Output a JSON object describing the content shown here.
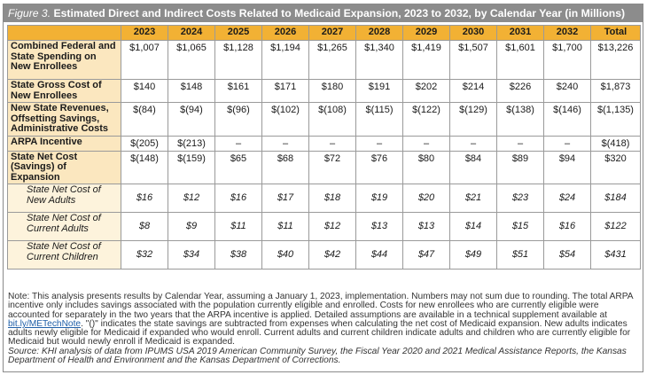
{
  "figure": {
    "label": "Figure 3.",
    "title": "Estimated Direct and Indirect Costs Related to Medicaid Expansion, 2023 to 2032, by Calendar Year (in Millions)"
  },
  "columns": [
    "2023",
    "2024",
    "2025",
    "2026",
    "2027",
    "2028",
    "2029",
    "2030",
    "2031",
    "2032",
    "Total"
  ],
  "rows": [
    {
      "label": "Combined Federal and State Spending on New Enrollees",
      "sub": false,
      "values": [
        "$1,007",
        "$1,065",
        "$1,128",
        "$1,194",
        "$1,265",
        "$1,340",
        "$1,419",
        "$1,507",
        "$1,601",
        "$1,700",
        "$13,226"
      ]
    },
    {
      "label": "State Gross Cost of New Enrollees",
      "sub": false,
      "values": [
        "$140",
        "$148",
        "$161",
        "$171",
        "$180",
        "$191",
        "$202",
        "$214",
        "$226",
        "$240",
        "$1,873"
      ]
    },
    {
      "label": "New State Revenues, Offsetting Savings, Administrative Costs",
      "sub": false,
      "values": [
        "$(84)",
        "$(94)",
        "$(96)",
        "$(102)",
        "$(108)",
        "$(115)",
        "$(122)",
        "$(129)",
        "$(138)",
        "$(146)",
        "$(1,135)"
      ]
    },
    {
      "label": "ARPA Incentive",
      "sub": false,
      "values": [
        "$(205)",
        "$(213)",
        "–",
        "–",
        "–",
        "–",
        "–",
        "–",
        "–",
        "–",
        "$(418)"
      ]
    },
    {
      "label": "State Net Cost (Savings) of Expansion",
      "sub": false,
      "values": [
        "$(148)",
        "$(159)",
        "$65",
        "$68",
        "$72",
        "$76",
        "$80",
        "$84",
        "$89",
        "$94",
        "$320"
      ]
    },
    {
      "label": "State Net Cost of New Adults",
      "sub": true,
      "values": [
        "$16",
        "$12",
        "$16",
        "$17",
        "$18",
        "$19",
        "$20",
        "$21",
        "$23",
        "$24",
        "$184"
      ]
    },
    {
      "label": "State Net Cost of Current Adults",
      "sub": true,
      "values": [
        "$8",
        "$9",
        "$11",
        "$11",
        "$12",
        "$13",
        "$13",
        "$14",
        "$15",
        "$16",
        "$122"
      ]
    },
    {
      "label": "State Net Cost of Current Children",
      "sub": true,
      "values": [
        "$32",
        "$34",
        "$38",
        "$40",
        "$42",
        "$44",
        "$47",
        "$49",
        "$51",
        "$54",
        "$431"
      ]
    }
  ],
  "notes": {
    "note_part1": "Note: This analysis presents results by Calendar Year, assuming a January 1, 2023, implementation. Numbers may not sum due to rounding. The total ARPA incentive only includes savings associated with the population currently eligible and enrolled. Costs for new enrollees who are currently eligible were accounted for separately in the two years that the ARPA incentive is applied. Detailed assumptions are available in a technical supplement available at ",
    "link": "bit.ly/METechNote",
    "note_part2": ". \"()\" indicates the state savings are subtracted from expenses when calculating the net cost of Medicaid expansion. New adults indicates adults newly eligible for Medicaid if expanded who would enroll. Current adults and current children indicate adults and children who are currently eligible for Medicaid but would newly enroll if Medicaid is expanded.",
    "source": "Source: KHI analysis of data from IPUMS USA 2019 American Community Survey, the Fiscal Year 2020 and 2021 Medical Assistance Reports, the Kansas Department of Health and Environment and the Kansas Department of Corrections."
  }
}
